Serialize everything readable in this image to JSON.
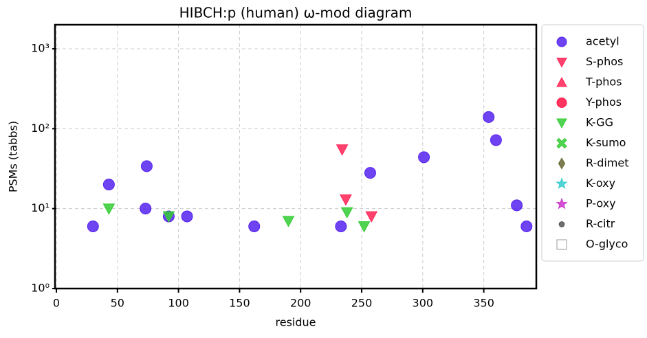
{
  "chart_data": {
    "type": "scatter",
    "title": "HIBCH:p (human) ω-mod diagram",
    "x_label": "residue",
    "y_label": "PSMs (tabbs)",
    "xlim": [
      0,
      393
    ],
    "xticks": [
      0,
      50,
      100,
      150,
      200,
      250,
      300,
      350
    ],
    "ylim": [
      1,
      2000
    ],
    "log_y": true,
    "yticks": [
      {
        "value": 1,
        "label": "10⁰"
      },
      {
        "value": 10,
        "label": "10¹"
      },
      {
        "value": 100,
        "label": "10²"
      },
      {
        "value": 1000,
        "label": "10³"
      }
    ],
    "grid": true,
    "legend": "outside right",
    "series": [
      {
        "name": "acetyl",
        "color": "#5522ee",
        "marker": "circle",
        "x": [
          30,
          43,
          73,
          74,
          92,
          107,
          162,
          233,
          257,
          301,
          354,
          360,
          377,
          385
        ],
        "values": [
          6,
          20,
          10,
          34,
          8,
          8,
          6,
          6,
          28,
          44,
          140,
          72,
          11,
          6
        ]
      },
      {
        "name": "S-phos",
        "color": "#ff2255",
        "marker": "triangle-down",
        "x": [
          234,
          237,
          258
        ],
        "values": [
          55,
          13,
          8
        ]
      },
      {
        "name": "T-phos",
        "color": "#ff2255",
        "marker": "triangle-up",
        "x": [],
        "values": []
      },
      {
        "name": "Y-phos",
        "color": "#ff1144",
        "marker": "circle",
        "x": [],
        "values": []
      },
      {
        "name": "K-GG",
        "color": "#33cc33",
        "marker": "triangle-down",
        "x": [
          43,
          92,
          190,
          238,
          252
        ],
        "values": [
          10,
          8,
          7,
          9,
          6
        ]
      },
      {
        "name": "K-sumo",
        "color": "#33cc33",
        "marker": "x",
        "x": [],
        "values": []
      },
      {
        "name": "R-dimet",
        "color": "#666633",
        "marker": "diamond",
        "x": [],
        "values": []
      },
      {
        "name": "K-oxy",
        "color": "#33cccc",
        "marker": "star",
        "x": [],
        "values": []
      },
      {
        "name": "P-oxy",
        "color": "#cc33cc",
        "marker": "star",
        "x": [],
        "values": []
      },
      {
        "name": "R-citr",
        "color": "#555555",
        "marker": "dot",
        "x": [],
        "values": []
      },
      {
        "name": "O-glyco",
        "color": "#ffffff",
        "marker": "square",
        "x": [],
        "values": []
      }
    ]
  }
}
